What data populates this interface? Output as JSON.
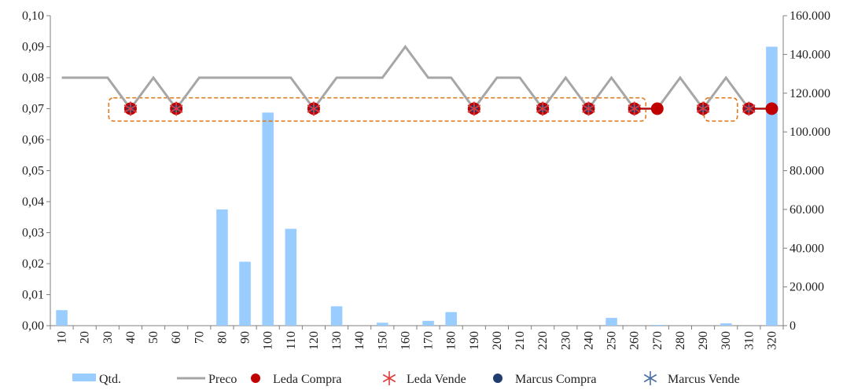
{
  "chart_data": {
    "type": "bar+line+scatter",
    "categories": [
      "10",
      "20",
      "30",
      "40",
      "50",
      "60",
      "70",
      "80",
      "90",
      "100",
      "110",
      "120",
      "130",
      "140",
      "150",
      "160",
      "170",
      "180",
      "190",
      "200",
      "210",
      "220",
      "230",
      "240",
      "250",
      "260",
      "270",
      "280",
      "290",
      "300",
      "310",
      "320"
    ],
    "left_axis": {
      "min": 0,
      "max": 0.1,
      "tick_labels": [
        "0,00",
        "0,01",
        "0,02",
        "0,03",
        "0,04",
        "0,05",
        "0,06",
        "0,07",
        "0,08",
        "0,09",
        "0,10"
      ]
    },
    "right_axis": {
      "min": 0,
      "max": 160000,
      "tick_labels": [
        "0",
        "20.000",
        "40.000",
        "60.000",
        "80.000",
        "100.000",
        "120.000",
        "140.000",
        "160.000"
      ]
    },
    "series": [
      {
        "name": "Qtd.",
        "type": "bar",
        "axis": "right",
        "color": "#99ccff",
        "values": [
          8000,
          0,
          0,
          0,
          0,
          0,
          0,
          60000,
          33000,
          110000,
          50000,
          0,
          10000,
          0,
          1500,
          0,
          2500,
          7000,
          0,
          0,
          0,
          0,
          0,
          0,
          4000,
          0,
          400,
          0,
          0,
          1200,
          0,
          144000
        ]
      },
      {
        "name": "Preco",
        "type": "line",
        "axis": "left",
        "color": "#a6a6a6",
        "values": [
          0.08,
          0.08,
          0.08,
          0.07,
          0.08,
          0.07,
          0.08,
          0.08,
          0.08,
          0.08,
          0.08,
          0.07,
          0.08,
          0.08,
          0.08,
          0.09,
          0.08,
          0.08,
          0.07,
          0.08,
          0.08,
          0.07,
          0.08,
          0.07,
          0.08,
          0.07,
          0.07,
          0.08,
          0.07,
          0.08,
          0.07,
          0.07
        ]
      },
      {
        "name": "Leda Compra",
        "type": "scatter",
        "marker": "circle",
        "axis": "left",
        "color": "#c00000",
        "points": [
          [
            "40",
            0.07
          ],
          [
            "60",
            0.07
          ],
          [
            "120",
            0.07
          ],
          [
            "190",
            0.07
          ],
          [
            "220",
            0.07
          ],
          [
            "240",
            0.07
          ],
          [
            "260",
            0.07
          ],
          [
            "270",
            0.07
          ],
          [
            "290",
            0.07
          ],
          [
            "310",
            0.07
          ],
          [
            "320",
            0.07
          ]
        ]
      },
      {
        "name": "Leda Vende",
        "type": "scatter",
        "marker": "star",
        "axis": "left",
        "color": "#e03c3c",
        "points": [
          [
            "40",
            0.07
          ],
          [
            "60",
            0.07
          ],
          [
            "120",
            0.07
          ],
          [
            "190",
            0.07
          ],
          [
            "220",
            0.07
          ],
          [
            "240",
            0.07
          ],
          [
            "260",
            0.07
          ],
          [
            "290",
            0.07
          ],
          [
            "310",
            0.07
          ]
        ]
      },
      {
        "name": "Marcus Compra",
        "type": "scatter",
        "marker": "circle",
        "axis": "left",
        "color": "#1f3d6e",
        "points": [
          [
            "40",
            0.07
          ],
          [
            "60",
            0.07
          ],
          [
            "120",
            0.07
          ],
          [
            "190",
            0.07
          ],
          [
            "220",
            0.07
          ],
          [
            "240",
            0.07
          ],
          [
            "260",
            0.07
          ],
          [
            "290",
            0.07
          ],
          [
            "310",
            0.07
          ]
        ]
      },
      {
        "name": "Marcus Vende",
        "type": "scatter",
        "marker": "star",
        "axis": "left",
        "color": "#4a6fa5",
        "points": [
          [
            "40",
            0.07
          ],
          [
            "60",
            0.07
          ],
          [
            "120",
            0.07
          ],
          [
            "190",
            0.07
          ],
          [
            "220",
            0.07
          ],
          [
            "240",
            0.07
          ],
          [
            "260",
            0.07
          ],
          [
            "290",
            0.07
          ],
          [
            "310",
            0.07
          ]
        ]
      }
    ],
    "annotations": [
      {
        "shape": "dashed-rounded-rect",
        "color": "#e07b20",
        "from": "30",
        "to": "270",
        "y_low": 0.066,
        "y_high": 0.0735
      },
      {
        "shape": "dashed-rounded-rect",
        "color": "#e07b20",
        "from": "290",
        "to": "310",
        "y_low": 0.066,
        "y_high": 0.0735
      }
    ],
    "connectors": [
      {
        "color": "#c00000",
        "from": "260",
        "to": "270",
        "y": 0.07
      },
      {
        "color": "#c00000",
        "from": "310",
        "to": "320",
        "y": 0.07
      }
    ],
    "grid": false,
    "legend": {
      "position": "bottom",
      "entries": [
        "Qtd.",
        "Preco",
        "Leda Compra",
        "Leda Vende",
        "Marcus Compra",
        "Marcus Vende"
      ]
    }
  }
}
